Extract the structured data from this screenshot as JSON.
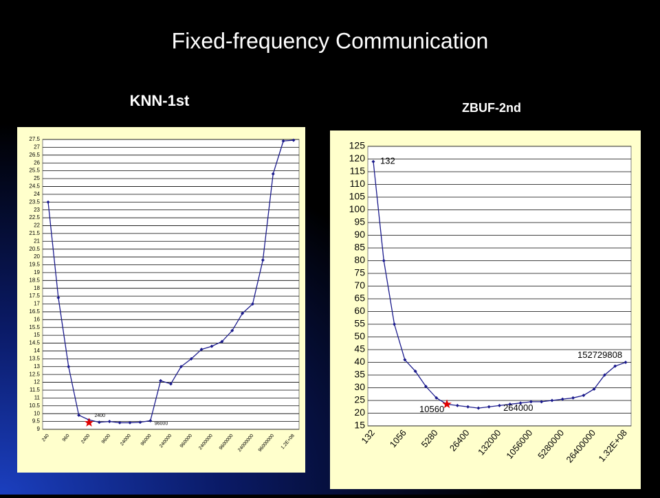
{
  "title": "Fixed-frequency  Communication",
  "chart_data": [
    {
      "type": "line",
      "title": "KNN-1st",
      "categories": [
        "240",
        null,
        "960",
        null,
        "2400",
        null,
        "9600",
        null,
        "24000",
        null,
        "96000",
        null,
        "240000",
        null,
        "960000",
        null,
        "2400000",
        null,
        "9600000",
        null,
        "24000000",
        null,
        "96000000",
        null,
        "1.2E+08"
      ],
      "series": [
        {
          "name": null,
          "color": "#1a1a8c",
          "values": [
            23.5,
            17.4,
            13,
            9.9,
            9.6,
            9.45,
            9.5,
            9.42,
            9.42,
            9.45,
            9.55,
            12.1,
            11.9,
            13,
            13.5,
            14.1,
            14.3,
            14.6,
            15.3,
            16.4,
            17,
            19.8,
            25.3,
            27.4,
            27.45
          ]
        }
      ],
      "ylim": [
        9,
        27.5
      ],
      "yticks": [
        9,
        9.5,
        10,
        10.5,
        11,
        11.5,
        12,
        12.5,
        13,
        13.5,
        14,
        14.5,
        15,
        15.5,
        16,
        16.5,
        17,
        17.5,
        18,
        18.5,
        19,
        19.5,
        20,
        20.5,
        21,
        21.5,
        22,
        22.5,
        23,
        23.5,
        24,
        24.5,
        25,
        25.5,
        26,
        26.5,
        27,
        27.5
      ],
      "grid": true,
      "annotations": [
        "2400",
        "96000"
      ]
    },
    {
      "type": "line",
      "title": "ZBUF-2nd",
      "categories": [
        "132",
        null,
        null,
        "1056",
        null,
        null,
        "5280",
        null,
        null,
        "26400",
        null,
        null,
        "132000",
        null,
        null,
        "1056000",
        null,
        null,
        "5280000",
        null,
        null,
        "26400000",
        null,
        null,
        "1.32E+08"
      ],
      "series": [
        {
          "name": null,
          "color": "#1a1a8c",
          "values": [
            119,
            80,
            55,
            41,
            36.5,
            30.5,
            26,
            23.5,
            23,
            22.5,
            22,
            22.5,
            23,
            23.5,
            24,
            24.5,
            24.5,
            25,
            25.5,
            26,
            27,
            29.5,
            35,
            38.5,
            40
          ]
        }
      ],
      "ylim": [
        15,
        125
      ],
      "yticks": [
        15,
        20,
        25,
        30,
        35,
        40,
        45,
        50,
        55,
        60,
        65,
        70,
        75,
        80,
        85,
        90,
        95,
        100,
        105,
        110,
        115,
        120,
        125
      ],
      "grid": true,
      "annotations": [
        "132",
        "10560",
        "264000",
        "152729808"
      ]
    }
  ]
}
